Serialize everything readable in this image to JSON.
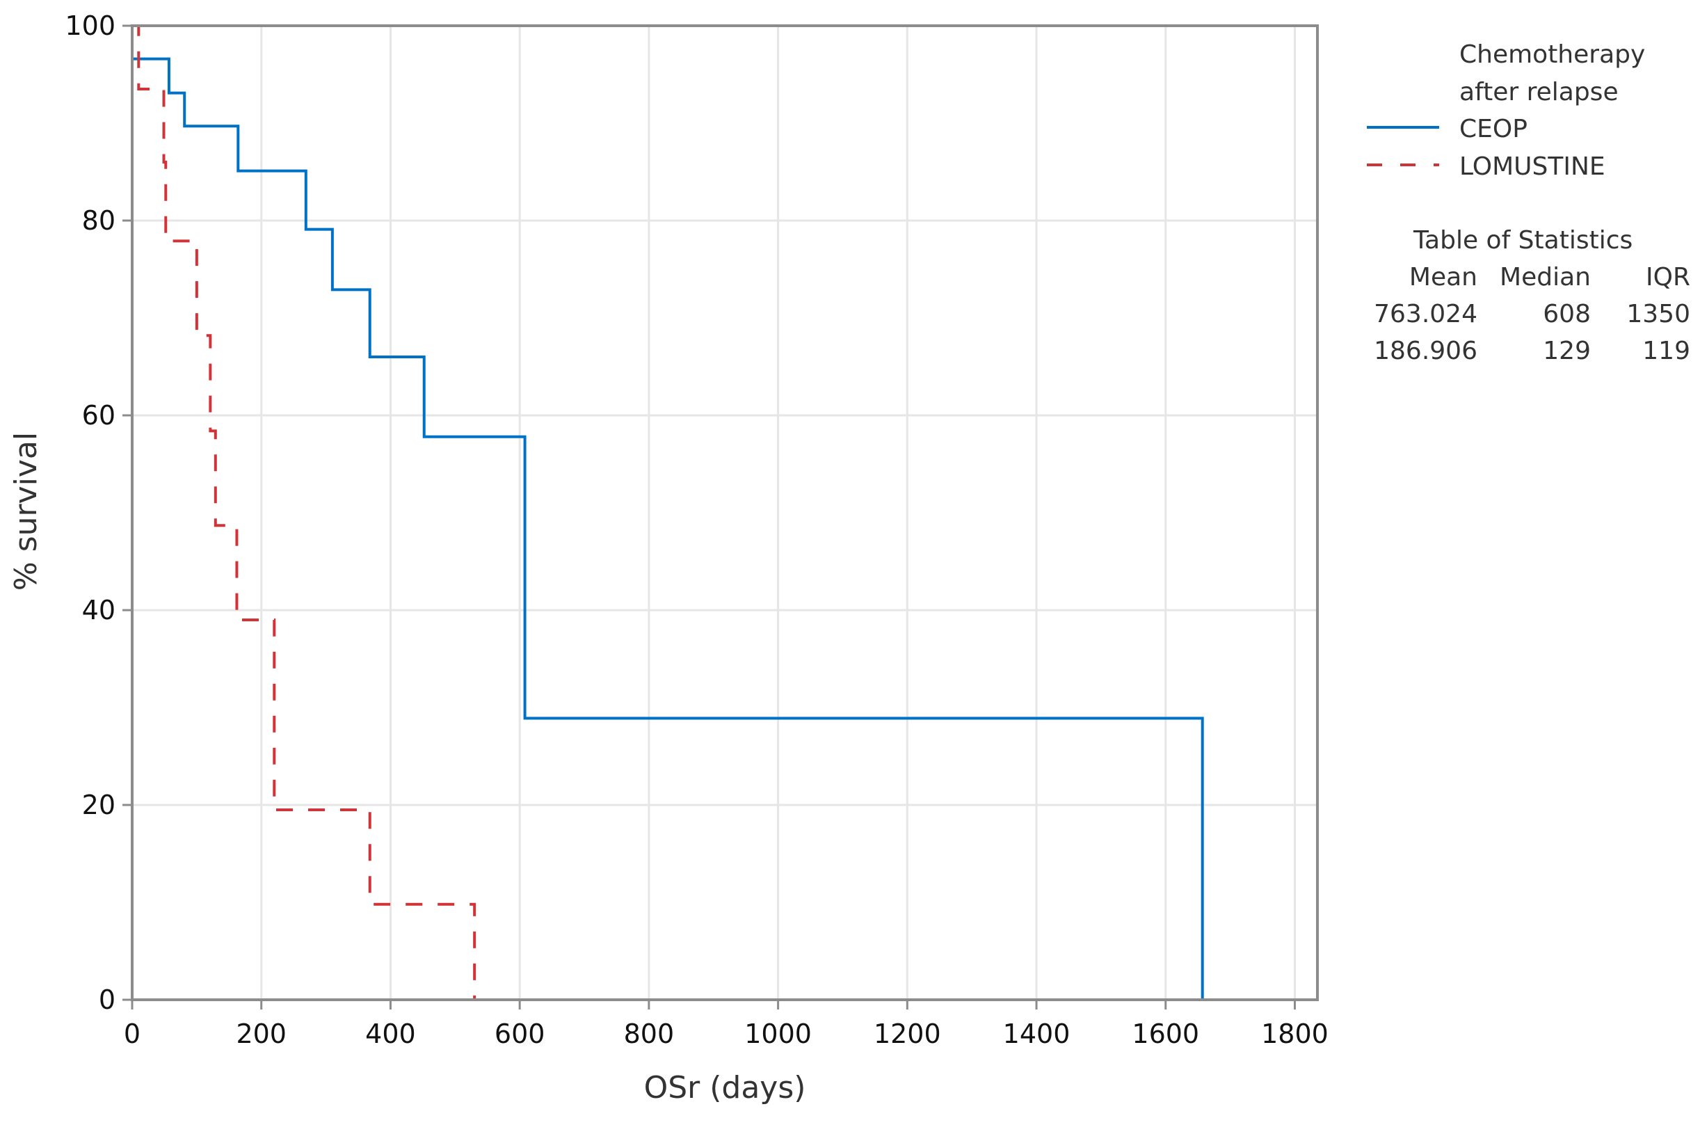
{
  "chart_data": {
    "type": "line",
    "subtype": "kaplan-meier-step",
    "title": "",
    "xlabel": "OSr (days)",
    "ylabel": "% survival",
    "xlim": [
      0,
      1850
    ],
    "ylim": [
      0,
      100
    ],
    "x_ticks": [
      0,
      200,
      400,
      600,
      800,
      1000,
      1200,
      1400,
      1600,
      1800
    ],
    "y_ticks": [
      0,
      20,
      40,
      60,
      80,
      100
    ],
    "grid": true,
    "legend": {
      "title_line1": "Chemotherapy",
      "title_line2": "after relapse",
      "position": "right-top",
      "entries": [
        {
          "label": "CEOP",
          "color": "#0072C6",
          "style": "solid"
        },
        {
          "label": "LOMUSTINE",
          "color": "#D13438",
          "style": "dashed"
        }
      ]
    },
    "series": [
      {
        "name": "CEOP",
        "color": "#0072C6",
        "style": "solid",
        "steps": [
          [
            0,
            96.6
          ],
          [
            57,
            93.1
          ],
          [
            81,
            89.7
          ],
          [
            164,
            85.1
          ],
          [
            269,
            79.1
          ],
          [
            310,
            72.9
          ],
          [
            368,
            66.0
          ],
          [
            452,
            57.8
          ],
          [
            608,
            28.9
          ],
          [
            1657,
            0
          ]
        ]
      },
      {
        "name": "LOMUSTINE",
        "color": "#D13438",
        "style": "dashed",
        "steps": [
          [
            0,
            100
          ],
          [
            10,
            93.5
          ],
          [
            49,
            86.0
          ],
          [
            52,
            77.9
          ],
          [
            100,
            68.2
          ],
          [
            121,
            58.4
          ],
          [
            129,
            48.7
          ],
          [
            162,
            39.0
          ],
          [
            220,
            19.5
          ],
          [
            368,
            9.8
          ],
          [
            530,
            0
          ],
          [
            1657,
            0
          ]
        ]
      }
    ],
    "statistics_table": {
      "title": "Table of Statistics",
      "columns": [
        "Mean",
        "Median",
        "IQR"
      ],
      "rows": [
        {
          "group": "CEOP",
          "Mean": "763.024",
          "Median": "608",
          "IQR": "1350"
        },
        {
          "group": "LOMUSTINE",
          "Mean": "186.906",
          "Median": "129",
          "IQR": "119"
        }
      ]
    }
  },
  "colors": {
    "axis": "#8c8c8c",
    "grid": "#e6e6e6",
    "ceop": "#0072C6",
    "lomustine": "#D13438"
  }
}
